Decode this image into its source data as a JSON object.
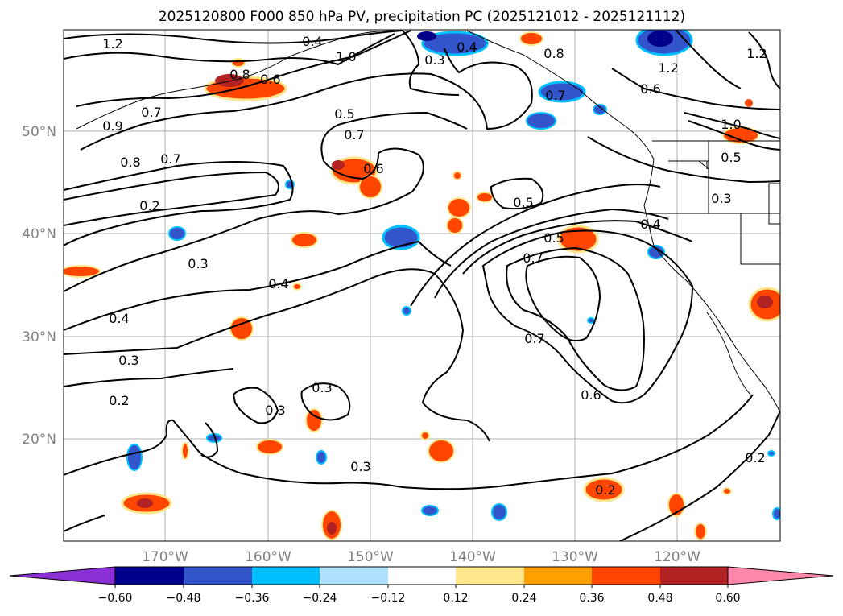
{
  "title": "2025120800 F000 850 hPa PV, precipitation PC (2025121012 - 2025121112)",
  "lat_labels": [
    "50°N",
    "40°N",
    "30°N",
    "20°N"
  ],
  "lon_labels": [
    "170°W",
    "160°W",
    "150°W",
    "140°W",
    "130°W",
    "120°W"
  ],
  "colorbar": {
    "tick_labels": [
      "−0.60",
      "−0.48",
      "−0.36",
      "−0.24",
      "−0.12",
      "0.12",
      "0.24",
      "0.36",
      "0.48",
      "0.60"
    ],
    "colors": [
      "#8b2fd6",
      "#00008b",
      "#3355cc",
      "#00bfff",
      "#b0e2ff",
      "#ffffff",
      "#ffe68a",
      "#ffa000",
      "#ff4500",
      "#b22222",
      "#ff88aa"
    ]
  },
  "contour_labels": [
    "1.2",
    "0.4",
    "0.8",
    "1.0",
    "0.6",
    "0.3",
    "0.4",
    "1.2",
    "0.7",
    "0.8",
    "0.6",
    "1.2",
    "0.7",
    "0.9",
    "0.5",
    "0.7",
    "0.8",
    "0.7",
    "0.6",
    "1.0",
    "0.5",
    "0.2",
    "0.5",
    "0.3",
    "0.4",
    "0.5",
    "0.7",
    "0.3",
    "0.4",
    "0.4",
    "0.3",
    "0.7",
    "0.6",
    "0.2",
    "0.3",
    "0.3",
    "0.3",
    "0.2",
    "0.2"
  ]
}
